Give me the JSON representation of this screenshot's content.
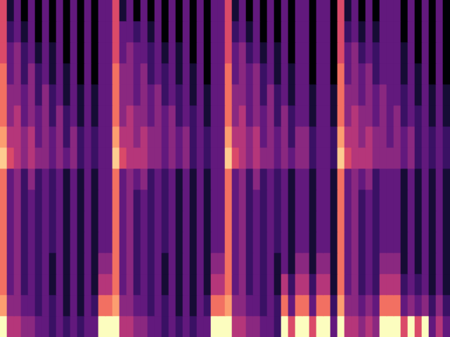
{
  "chart_data": {
    "type": "heatmap",
    "tick_labels": false,
    "grid": false,
    "color_range": [
      0,
      10
    ],
    "cells": [
      [
        6,
        1,
        3,
        0,
        3,
        0,
        3,
        0,
        3,
        0,
        3,
        0,
        3,
        0,
        3,
        3,
        6,
        1,
        3,
        0,
        3,
        0,
        3,
        0,
        3,
        0,
        3,
        0,
        3,
        0,
        3,
        3,
        6,
        1,
        3,
        0,
        3,
        0,
        3,
        0,
        3,
        0,
        3,
        3,
        0,
        3,
        3,
        0,
        6,
        1,
        3,
        0,
        3,
        0,
        3,
        3,
        3,
        0,
        3,
        0,
        3,
        0,
        3,
        0
      ],
      [
        6,
        2,
        3,
        1,
        3,
        0,
        3,
        0,
        3,
        0,
        3,
        0,
        3,
        0,
        3,
        3,
        6,
        3,
        3,
        2,
        3,
        1,
        3,
        0,
        3,
        0,
        3,
        0,
        3,
        0,
        3,
        3,
        6,
        2,
        3,
        1,
        3,
        0,
        3,
        0,
        3,
        0,
        3,
        3,
        0,
        3,
        3,
        0,
        6,
        2,
        3,
        1,
        3,
        1,
        3,
        3,
        3,
        0,
        3,
        0,
        3,
        0,
        3,
        0
      ],
      [
        6,
        3,
        4,
        2,
        3,
        1,
        3,
        1,
        3,
        0,
        3,
        0,
        3,
        0,
        3,
        3,
        6,
        3,
        4,
        3,
        3,
        2,
        3,
        1,
        3,
        1,
        3,
        0,
        3,
        0,
        3,
        3,
        6,
        3,
        4,
        2,
        3,
        1,
        3,
        1,
        3,
        0,
        3,
        3,
        0,
        3,
        3,
        0,
        6,
        3,
        4,
        2,
        3,
        2,
        3,
        3,
        3,
        1,
        3,
        0,
        3,
        0,
        3,
        0
      ],
      [
        7,
        3,
        4,
        2,
        4,
        2,
        3,
        1,
        3,
        1,
        3,
        0,
        3,
        0,
        3,
        3,
        7,
        4,
        4,
        3,
        4,
        2,
        3,
        2,
        3,
        1,
        3,
        1,
        3,
        0,
        3,
        3,
        7,
        3,
        4,
        3,
        4,
        2,
        3,
        1,
        3,
        1,
        3,
        3,
        0,
        3,
        3,
        0,
        7,
        3,
        4,
        3,
        4,
        2,
        3,
        3,
        3,
        1,
        3,
        1,
        3,
        0,
        3,
        0
      ],
      [
        7,
        4,
        4,
        3,
        4,
        2,
        4,
        2,
        3,
        1,
        3,
        1,
        3,
        1,
        3,
        3,
        7,
        4,
        4,
        3,
        4,
        3,
        4,
        2,
        3,
        2,
        3,
        1,
        3,
        1,
        3,
        3,
        7,
        4,
        4,
        3,
        4,
        2,
        4,
        2,
        3,
        1,
        3,
        3,
        1,
        3,
        3,
        1,
        7,
        4,
        4,
        3,
        4,
        3,
        4,
        3,
        3,
        2,
        3,
        1,
        3,
        1,
        3,
        1
      ],
      [
        7,
        4,
        5,
        3,
        4,
        3,
        4,
        2,
        4,
        2,
        3,
        1,
        3,
        1,
        3,
        3,
        7,
        4,
        5,
        4,
        4,
        3,
        4,
        3,
        4,
        2,
        3,
        2,
        3,
        1,
        3,
        3,
        7,
        4,
        5,
        3,
        4,
        3,
        4,
        2,
        4,
        2,
        3,
        3,
        1,
        3,
        3,
        1,
        7,
        4,
        5,
        4,
        4,
        3,
        4,
        3,
        4,
        2,
        3,
        2,
        3,
        1,
        3,
        1
      ],
      [
        8,
        5,
        5,
        4,
        5,
        3,
        4,
        3,
        4,
        2,
        4,
        2,
        3,
        2,
        3,
        3,
        8,
        5,
        5,
        4,
        5,
        4,
        4,
        3,
        4,
        3,
        4,
        2,
        3,
        2,
        3,
        3,
        8,
        5,
        5,
        4,
        5,
        3,
        4,
        3,
        4,
        2,
        4,
        4,
        2,
        3,
        3,
        2,
        8,
        5,
        5,
        4,
        5,
        4,
        4,
        3,
        4,
        3,
        4,
        2,
        3,
        2,
        3,
        2
      ],
      [
        9,
        6,
        5,
        4,
        5,
        4,
        4,
        3,
        4,
        3,
        4,
        2,
        3,
        2,
        3,
        3,
        9,
        6,
        5,
        5,
        5,
        4,
        4,
        3,
        4,
        3,
        4,
        2,
        3,
        2,
        3,
        3,
        9,
        6,
        5,
        4,
        5,
        4,
        4,
        3,
        4,
        3,
        4,
        4,
        2,
        3,
        3,
        2,
        9,
        6,
        5,
        5,
        5,
        4,
        4,
        4,
        4,
        3,
        4,
        2,
        3,
        2,
        3,
        2
      ],
      [
        7,
        3,
        4,
        2,
        4,
        2,
        3,
        2,
        3,
        1,
        3,
        1,
        3,
        1,
        3,
        3,
        7,
        3,
        4,
        3,
        4,
        2,
        3,
        2,
        3,
        1,
        3,
        1,
        3,
        1,
        3,
        3,
        7,
        3,
        4,
        2,
        4,
        2,
        3,
        2,
        3,
        1,
        3,
        3,
        1,
        3,
        3,
        1,
        7,
        3,
        4,
        3,
        4,
        2,
        3,
        3,
        3,
        1,
        3,
        1,
        3,
        1,
        3,
        1
      ],
      [
        7,
        3,
        4,
        2,
        3,
        2,
        3,
        2,
        3,
        1,
        3,
        1,
        3,
        1,
        3,
        3,
        7,
        3,
        4,
        2,
        3,
        2,
        3,
        2,
        3,
        1,
        3,
        1,
        3,
        1,
        3,
        3,
        7,
        3,
        4,
        2,
        3,
        2,
        3,
        2,
        3,
        1,
        3,
        3,
        1,
        3,
        3,
        1,
        7,
        3,
        4,
        2,
        3,
        2,
        3,
        3,
        3,
        1,
        3,
        1,
        3,
        1,
        3,
        1
      ],
      [
        7,
        3,
        4,
        2,
        3,
        2,
        3,
        2,
        3,
        1,
        3,
        1,
        3,
        1,
        3,
        3,
        7,
        3,
        4,
        2,
        3,
        2,
        3,
        2,
        3,
        1,
        3,
        1,
        3,
        1,
        3,
        3,
        7,
        3,
        4,
        2,
        3,
        2,
        3,
        2,
        3,
        1,
        3,
        3,
        1,
        3,
        3,
        1,
        7,
        3,
        4,
        2,
        3,
        2,
        3,
        3,
        3,
        1,
        3,
        1,
        3,
        1,
        3,
        1
      ],
      [
        7,
        3,
        4,
        2,
        3,
        2,
        3,
        2,
        3,
        1,
        3,
        1,
        3,
        1,
        3,
        3,
        7,
        3,
        4,
        2,
        3,
        2,
        3,
        2,
        3,
        1,
        3,
        1,
        3,
        1,
        3,
        3,
        7,
        3,
        4,
        2,
        3,
        2,
        3,
        2,
        3,
        1,
        3,
        3,
        1,
        3,
        3,
        1,
        7,
        3,
        4,
        2,
        3,
        2,
        3,
        3,
        3,
        1,
        3,
        1,
        3,
        1,
        3,
        1
      ],
      [
        7,
        3,
        4,
        2,
        3,
        2,
        3,
        1,
        3,
        1,
        3,
        1,
        3,
        1,
        4,
        4,
        7,
        3,
        4,
        2,
        3,
        2,
        3,
        1,
        3,
        1,
        3,
        1,
        3,
        1,
        4,
        4,
        7,
        3,
        4,
        2,
        3,
        2,
        3,
        1,
        3,
        1,
        4,
        4,
        1,
        4,
        4,
        1,
        7,
        3,
        4,
        2,
        3,
        2,
        4,
        4,
        4,
        1,
        3,
        1,
        3,
        1,
        3,
        1
      ],
      [
        7,
        3,
        4,
        2,
        3,
        2,
        3,
        1,
        3,
        1,
        3,
        1,
        3,
        1,
        5,
        5,
        7,
        3,
        4,
        2,
        3,
        2,
        3,
        1,
        3,
        1,
        3,
        1,
        3,
        1,
        5,
        5,
        7,
        3,
        4,
        2,
        3,
        2,
        3,
        1,
        5,
        2,
        5,
        5,
        2,
        5,
        5,
        1,
        7,
        3,
        4,
        2,
        3,
        2,
        5,
        5,
        5,
        2,
        3,
        2,
        3,
        1,
        3,
        1
      ],
      [
        8,
        4,
        4,
        3,
        3,
        2,
        3,
        2,
        3,
        1,
        3,
        1,
        3,
        2,
        7,
        7,
        8,
        4,
        4,
        3,
        3,
        2,
        3,
        2,
        3,
        1,
        3,
        1,
        3,
        2,
        7,
        7,
        8,
        4,
        4,
        3,
        3,
        2,
        3,
        2,
        7,
        3,
        7,
        7,
        3,
        7,
        7,
        2,
        8,
        4,
        4,
        3,
        4,
        3,
        7,
        7,
        7,
        3,
        4,
        3,
        4,
        2,
        4,
        2
      ],
      [
        10,
        5,
        5,
        4,
        4,
        3,
        3,
        2,
        3,
        2,
        3,
        2,
        3,
        3,
        10,
        10,
        10,
        5,
        5,
        4,
        4,
        3,
        3,
        2,
        3,
        2,
        3,
        2,
        3,
        3,
        10,
        10,
        10,
        5,
        5,
        4,
        4,
        3,
        3,
        2,
        10,
        6,
        10,
        10,
        6,
        10,
        10,
        3,
        10,
        5,
        5,
        4,
        5,
        4,
        10,
        10,
        10,
        6,
        10,
        6,
        10,
        3,
        5,
        3
      ]
    ]
  }
}
